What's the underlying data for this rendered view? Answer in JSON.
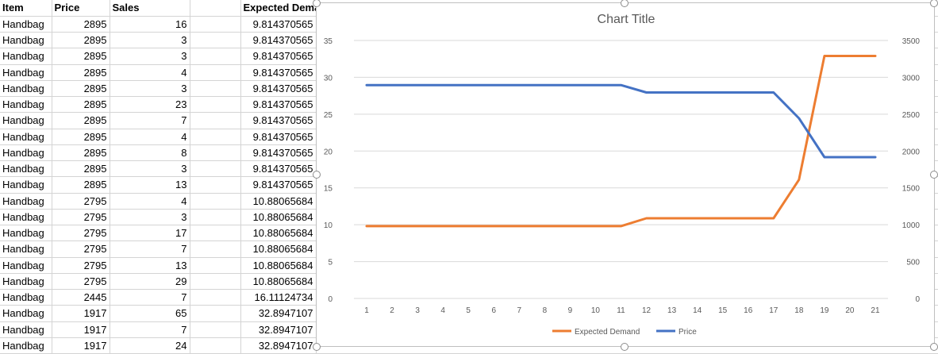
{
  "sheet": {
    "headers": {
      "item": "Item",
      "price": "Price",
      "sales": "Sales",
      "expected": "Expected Demand"
    },
    "rows": [
      {
        "item": "Handbag",
        "price": "2895",
        "sales": "16",
        "expected": "9.814370565"
      },
      {
        "item": "Handbag",
        "price": "2895",
        "sales": "3",
        "expected": "9.814370565"
      },
      {
        "item": "Handbag",
        "price": "2895",
        "sales": "3",
        "expected": "9.814370565"
      },
      {
        "item": "Handbag",
        "price": "2895",
        "sales": "4",
        "expected": "9.814370565"
      },
      {
        "item": "Handbag",
        "price": "2895",
        "sales": "3",
        "expected": "9.814370565"
      },
      {
        "item": "Handbag",
        "price": "2895",
        "sales": "23",
        "expected": "9.814370565"
      },
      {
        "item": "Handbag",
        "price": "2895",
        "sales": "7",
        "expected": "9.814370565"
      },
      {
        "item": "Handbag",
        "price": "2895",
        "sales": "4",
        "expected": "9.814370565"
      },
      {
        "item": "Handbag",
        "price": "2895",
        "sales": "8",
        "expected": "9.814370565"
      },
      {
        "item": "Handbag",
        "price": "2895",
        "sales": "3",
        "expected": "9.814370565"
      },
      {
        "item": "Handbag",
        "price": "2895",
        "sales": "13",
        "expected": "9.814370565"
      },
      {
        "item": "Handbag",
        "price": "2795",
        "sales": "4",
        "expected": "10.88065684"
      },
      {
        "item": "Handbag",
        "price": "2795",
        "sales": "3",
        "expected": "10.88065684"
      },
      {
        "item": "Handbag",
        "price": "2795",
        "sales": "17",
        "expected": "10.88065684"
      },
      {
        "item": "Handbag",
        "price": "2795",
        "sales": "7",
        "expected": "10.88065684"
      },
      {
        "item": "Handbag",
        "price": "2795",
        "sales": "13",
        "expected": "10.88065684"
      },
      {
        "item": "Handbag",
        "price": "2795",
        "sales": "29",
        "expected": "10.88065684"
      },
      {
        "item": "Handbag",
        "price": "2445",
        "sales": "7",
        "expected": "16.11124734"
      },
      {
        "item": "Handbag",
        "price": "1917",
        "sales": "65",
        "expected": "32.8947107"
      },
      {
        "item": "Handbag",
        "price": "1917",
        "sales": "7",
        "expected": "32.8947107"
      },
      {
        "item": "Handbag",
        "price": "1917",
        "sales": "24",
        "expected": "32.8947107"
      }
    ]
  },
  "colors": {
    "expected_demand": "#ED7D31",
    "price": "#4472C4",
    "gridline": "#d9d9d9",
    "axis_text": "#595959",
    "title_text": "#595959"
  },
  "chart_data": {
    "type": "line",
    "title": "Chart Title",
    "xlabel": "",
    "ylabel": "",
    "x": [
      1,
      2,
      3,
      4,
      5,
      6,
      7,
      8,
      9,
      10,
      11,
      12,
      13,
      14,
      15,
      16,
      17,
      18,
      19,
      20,
      21
    ],
    "x_tick_labels": [
      "1",
      "2",
      "3",
      "4",
      "5",
      "6",
      "7",
      "8",
      "9",
      "10",
      "11",
      "12",
      "13",
      "14",
      "15",
      "16",
      "17",
      "18",
      "19",
      "20",
      "21"
    ],
    "y_left": {
      "lim": [
        0,
        35
      ],
      "ticks": [
        "0",
        "5",
        "10",
        "15",
        "20",
        "25",
        "30",
        "35"
      ]
    },
    "y_right": {
      "lim": [
        0,
        3500
      ],
      "ticks": [
        "0",
        "500",
        "1000",
        "1500",
        "2000",
        "2500",
        "3000",
        "3500"
      ]
    },
    "grid": true,
    "legend_position": "bottom",
    "series": [
      {
        "name": "Expected Demand",
        "axis": "left",
        "values": [
          9.814370565,
          9.814370565,
          9.814370565,
          9.814370565,
          9.814370565,
          9.814370565,
          9.814370565,
          9.814370565,
          9.814370565,
          9.814370565,
          9.814370565,
          10.88065684,
          10.88065684,
          10.88065684,
          10.88065684,
          10.88065684,
          10.88065684,
          16.11124734,
          32.8947107,
          32.8947107,
          32.8947107
        ]
      },
      {
        "name": "Price",
        "axis": "right",
        "values": [
          2895,
          2895,
          2895,
          2895,
          2895,
          2895,
          2895,
          2895,
          2895,
          2895,
          2895,
          2795,
          2795,
          2795,
          2795,
          2795,
          2795,
          2445,
          1917,
          1917,
          1917
        ]
      }
    ]
  }
}
